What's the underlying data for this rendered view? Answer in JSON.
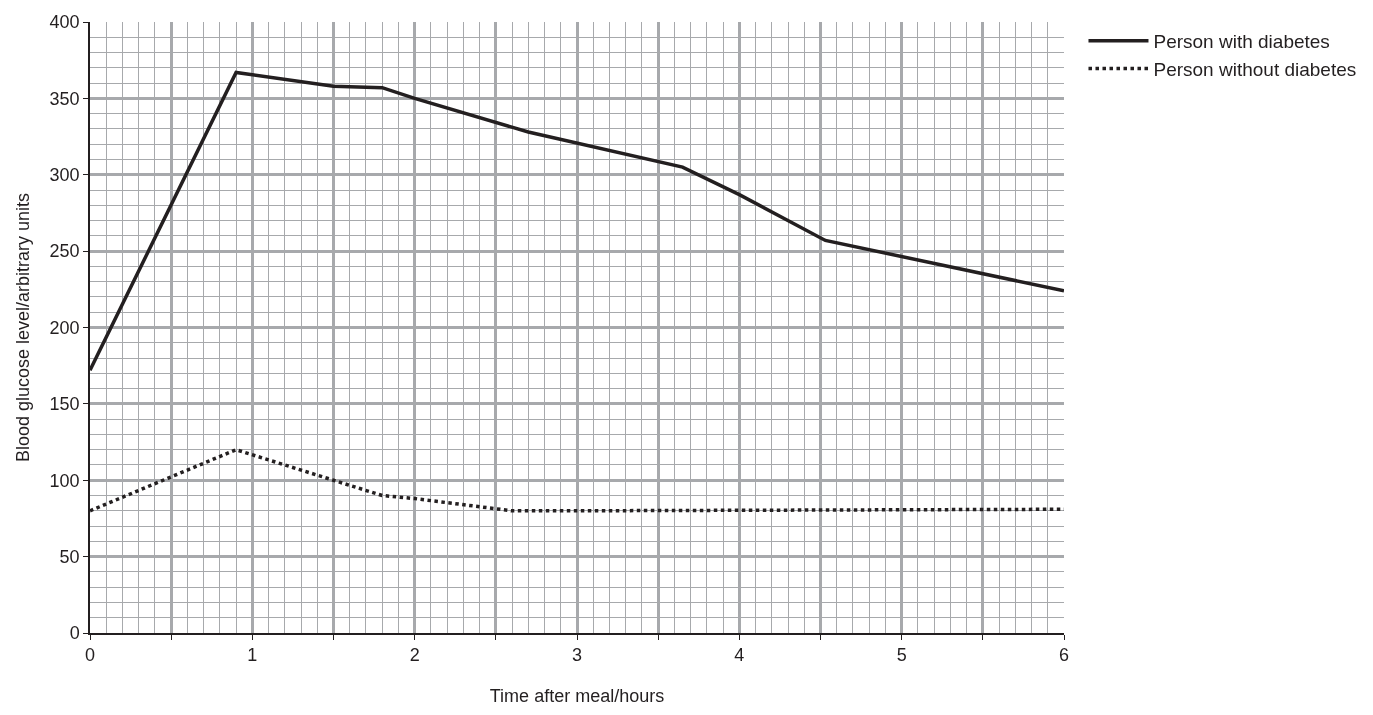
{
  "chart_data": {
    "type": "line",
    "xlabel": "Time after meal/hours",
    "ylabel": "Blood glucose level/arbitrary units",
    "xlim": [
      0,
      6
    ],
    "ylim": [
      0,
      400
    ],
    "xticks": [
      0,
      {
        "value": 0.5,
        "label": null
      },
      1,
      {
        "value": 1.5,
        "label": null
      },
      2,
      {
        "value": 2.5,
        "label": null
      },
      3,
      {
        "value": 3.5,
        "label": null
      },
      4,
      {
        "value": 4.5,
        "label": null
      },
      5,
      {
        "value": 5.5,
        "label": null
      },
      6
    ],
    "yticks": [
      0,
      50,
      100,
      150,
      200,
      250,
      300,
      350,
      400
    ],
    "grid": true,
    "legend": "top right",
    "marker": "none",
    "series": [
      {
        "name": "Person with diabetes",
        "color": "#231f20",
        "line_style": "solid",
        "x": [
          0,
          0.9,
          1.5,
          1.8,
          2,
          2.7,
          3.65,
          4,
          4.53,
          6
        ],
        "values": [
          172,
          367,
          358,
          357,
          350,
          328,
          305,
          287,
          257,
          224
        ]
      },
      {
        "name": "Person without diabetes",
        "color": "#231f20",
        "line_style": "dotted",
        "x": [
          0,
          0.9,
          1.5,
          1.8,
          2,
          2.6,
          3,
          6
        ],
        "values": [
          80,
          120,
          100,
          90,
          88,
          80,
          80,
          81
        ]
      }
    ]
  }
}
